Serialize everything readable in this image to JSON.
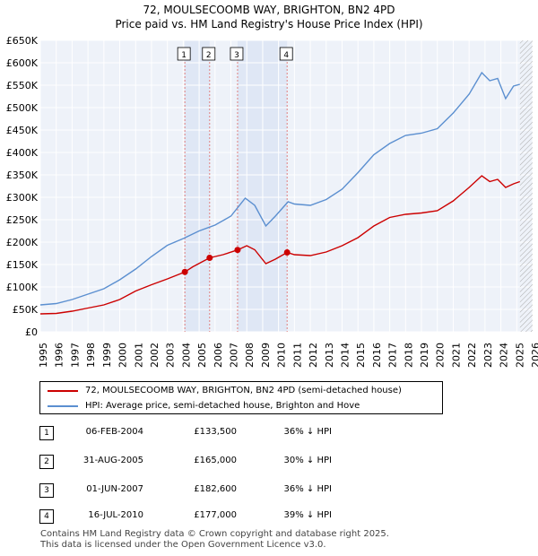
{
  "chart_data": {
    "type": "line",
    "title": "72, MOULSECOOMB WAY, BRIGHTON, BN2 4PD",
    "subtitle": "Price paid vs. HM Land Registry's House Price Index (HPI)",
    "xlim": [
      1995,
      2026
    ],
    "ylim": [
      0,
      650000
    ],
    "x_ticks": [
      "1995",
      "1996",
      "1997",
      "1998",
      "1999",
      "2000",
      "2001",
      "2002",
      "2003",
      "2004",
      "2005",
      "2006",
      "2007",
      "2008",
      "2009",
      "2010",
      "2011",
      "2012",
      "2013",
      "2014",
      "2015",
      "2016",
      "2017",
      "2018",
      "2019",
      "2020",
      "2021",
      "2022",
      "2023",
      "2024",
      "2025",
      "2026"
    ],
    "y_ticks": [
      {
        "value": 0,
        "label": "£0"
      },
      {
        "value": 50000,
        "label": "£50K"
      },
      {
        "value": 100000,
        "label": "£100K"
      },
      {
        "value": 150000,
        "label": "£150K"
      },
      {
        "value": 200000,
        "label": "£200K"
      },
      {
        "value": 250000,
        "label": "£250K"
      },
      {
        "value": 300000,
        "label": "£300K"
      },
      {
        "value": 350000,
        "label": "£350K"
      },
      {
        "value": 400000,
        "label": "£400K"
      },
      {
        "value": 450000,
        "label": "£450K"
      },
      {
        "value": 500000,
        "label": "£500K"
      },
      {
        "value": 550000,
        "label": "£550K"
      },
      {
        "value": 600000,
        "label": "£600K"
      },
      {
        "value": 650000,
        "label": "£650K"
      }
    ],
    "grid": true,
    "series": [
      {
        "name": "72, MOULSECOOMB WAY, BRIGHTON, BN2 4PD (semi-detached house)",
        "color": "#cc0000",
        "points": [
          [
            1995,
            40000
          ],
          [
            1996,
            41000
          ],
          [
            1997,
            46000
          ],
          [
            1998,
            53000
          ],
          [
            1999,
            60000
          ],
          [
            2000,
            72000
          ],
          [
            2001,
            91000
          ],
          [
            2002,
            105000
          ],
          [
            2003,
            118000
          ],
          [
            2004.1,
            133500
          ],
          [
            2004.6,
            145000
          ],
          [
            2005.66,
            165000
          ],
          [
            2006.5,
            172000
          ],
          [
            2007.42,
            182600
          ],
          [
            2008.0,
            192000
          ],
          [
            2008.5,
            183000
          ],
          [
            2009.2,
            152000
          ],
          [
            2009.8,
            162000
          ],
          [
            2010.54,
            177000
          ],
          [
            2011,
            172000
          ],
          [
            2012,
            170000
          ],
          [
            2013,
            178000
          ],
          [
            2014,
            192000
          ],
          [
            2015,
            210000
          ],
          [
            2016,
            236000
          ],
          [
            2017,
            255000
          ],
          [
            2018,
            262000
          ],
          [
            2019,
            265000
          ],
          [
            2020,
            270000
          ],
          [
            2021,
            292000
          ],
          [
            2022,
            322000
          ],
          [
            2022.8,
            348000
          ],
          [
            2023.3,
            335000
          ],
          [
            2023.8,
            340000
          ],
          [
            2024.3,
            322000
          ],
          [
            2024.8,
            330000
          ],
          [
            2025.2,
            335000
          ]
        ]
      },
      {
        "name": "HPI: Average price, semi-detached house, Brighton and Hove",
        "color": "#5b8fd0",
        "points": [
          [
            1995,
            60000
          ],
          [
            1996,
            63000
          ],
          [
            1997,
            72000
          ],
          [
            1998,
            84000
          ],
          [
            1999,
            96000
          ],
          [
            2000,
            116000
          ],
          [
            2001,
            140000
          ],
          [
            2002,
            168000
          ],
          [
            2003,
            193000
          ],
          [
            2004,
            208000
          ],
          [
            2005,
            225000
          ],
          [
            2006,
            238000
          ],
          [
            2007,
            258000
          ],
          [
            2007.9,
            298000
          ],
          [
            2008.5,
            282000
          ],
          [
            2009.2,
            236000
          ],
          [
            2009.8,
            258000
          ],
          [
            2010.6,
            290000
          ],
          [
            2011,
            285000
          ],
          [
            2012,
            282000
          ],
          [
            2013,
            295000
          ],
          [
            2014,
            318000
          ],
          [
            2015,
            355000
          ],
          [
            2016,
            395000
          ],
          [
            2017,
            420000
          ],
          [
            2018,
            438000
          ],
          [
            2019,
            443000
          ],
          [
            2020,
            453000
          ],
          [
            2021,
            488000
          ],
          [
            2022,
            530000
          ],
          [
            2022.8,
            578000
          ],
          [
            2023.3,
            560000
          ],
          [
            2023.8,
            565000
          ],
          [
            2024.3,
            520000
          ],
          [
            2024.8,
            548000
          ],
          [
            2025.2,
            552000
          ]
        ]
      }
    ],
    "transactions": [
      {
        "num": "1",
        "x": 2004.1,
        "value": 133500,
        "date": "06-FEB-2004",
        "price": "£133,500",
        "hpi": "36% ↓ HPI"
      },
      {
        "num": "2",
        "x": 2005.66,
        "value": 165000,
        "date": "31-AUG-2005",
        "price": "£165,000",
        "hpi": "30% ↓ HPI"
      },
      {
        "num": "3",
        "x": 2007.42,
        "value": 182600,
        "date": "01-JUN-2007",
        "price": "£182,600",
        "hpi": "36% ↓ HPI"
      },
      {
        "num": "4",
        "x": 2010.54,
        "value": 177000,
        "date": "16-JUL-2010",
        "price": "£177,000",
        "hpi": "39% ↓ HPI"
      }
    ],
    "shaded_ranges": [
      [
        2004.1,
        2005.66
      ],
      [
        2007.42,
        2010.54
      ]
    ],
    "future_from": 2025.2
  },
  "legend": {
    "property_label": "72, MOULSECOOMB WAY, BRIGHTON, BN2 4PD (semi-detached house)",
    "hpi_label": "HPI: Average price, semi-detached house, Brighton and Hove"
  },
  "footer": {
    "line1": "Contains HM Land Registry data © Crown copyright and database right 2025.",
    "line2": "This data is licensed under the Open Government Licence v3.0."
  }
}
